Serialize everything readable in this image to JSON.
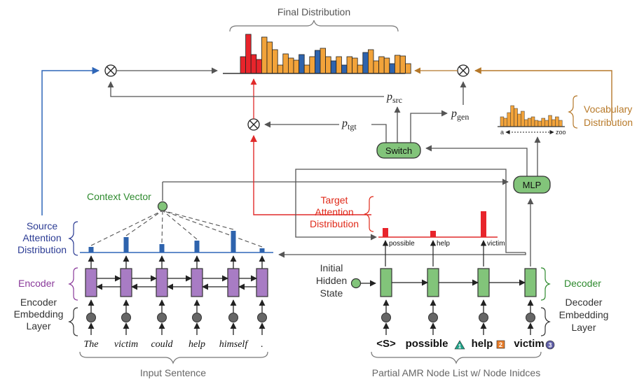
{
  "title": "Final Distribution",
  "labels": {
    "p_src": "p",
    "p_src_sub": "src",
    "p_gen": "p",
    "p_gen_sub": "gen",
    "p_tgt": "p",
    "p_tgt_sub": "tgt",
    "vocab_line1": "Vocabulary",
    "vocab_line2": "Distribution",
    "vocab_axis_a": "a",
    "vocab_axis_zoo": "zoo",
    "switch": "Switch",
    "mlp": "MLP",
    "context_vector": "Context Vector",
    "target_attention_1": "Target",
    "target_attention_2": "Attention",
    "target_attention_3": "Distribution",
    "source_attention_1": "Source",
    "source_attention_2": "Attention",
    "source_attention_3": "Distribution",
    "encoder": "Encoder",
    "encoder_embedding_1": "Encoder",
    "encoder_embedding_2": "Embedding",
    "encoder_embedding_3": "Layer",
    "initial_hidden_1": "Initial",
    "initial_hidden_2": "Hidden",
    "initial_hidden_3": "State",
    "decoder": "Decoder",
    "decoder_embedding_1": "Decoder",
    "decoder_embedding_2": "Embedding",
    "decoder_embedding_3": "Layer",
    "input_sentence": "Input Sentence",
    "partial_amr": "Partial AMR Node List w/ Node Inidces"
  },
  "source_tokens": [
    "The",
    "victim",
    "could",
    "help",
    "himself",
    "."
  ],
  "target_nodes": [
    {
      "text": "<S>",
      "index": ""
    },
    {
      "text": "possible",
      "index": "1"
    },
    {
      "text": "help",
      "index": "2"
    },
    {
      "text": "victim",
      "index": "3"
    }
  ],
  "target_attention_words": [
    "possible",
    "help",
    "victim"
  ],
  "colors": {
    "red": "#e8242b",
    "orange": "#f2a33a",
    "blue": "#2e63ad",
    "purple": "#a87cc4",
    "green": "#82c47a",
    "teal": "#22a48a",
    "index_orange": "#e87d2a",
    "index_purple": "#6160a8",
    "source_label": "#2c3c94",
    "context_label": "#2e8a2e",
    "encoder_label": "#8a3a9a",
    "target_label": "#e02a1a",
    "vocab_label": "#b87a2a",
    "decoder_label": "#2e8a2e",
    "line_blue": "#2f66b8",
    "line_red": "#e02a2a",
    "line_brown": "#b5782a",
    "line_gray": "#555555"
  }
}
